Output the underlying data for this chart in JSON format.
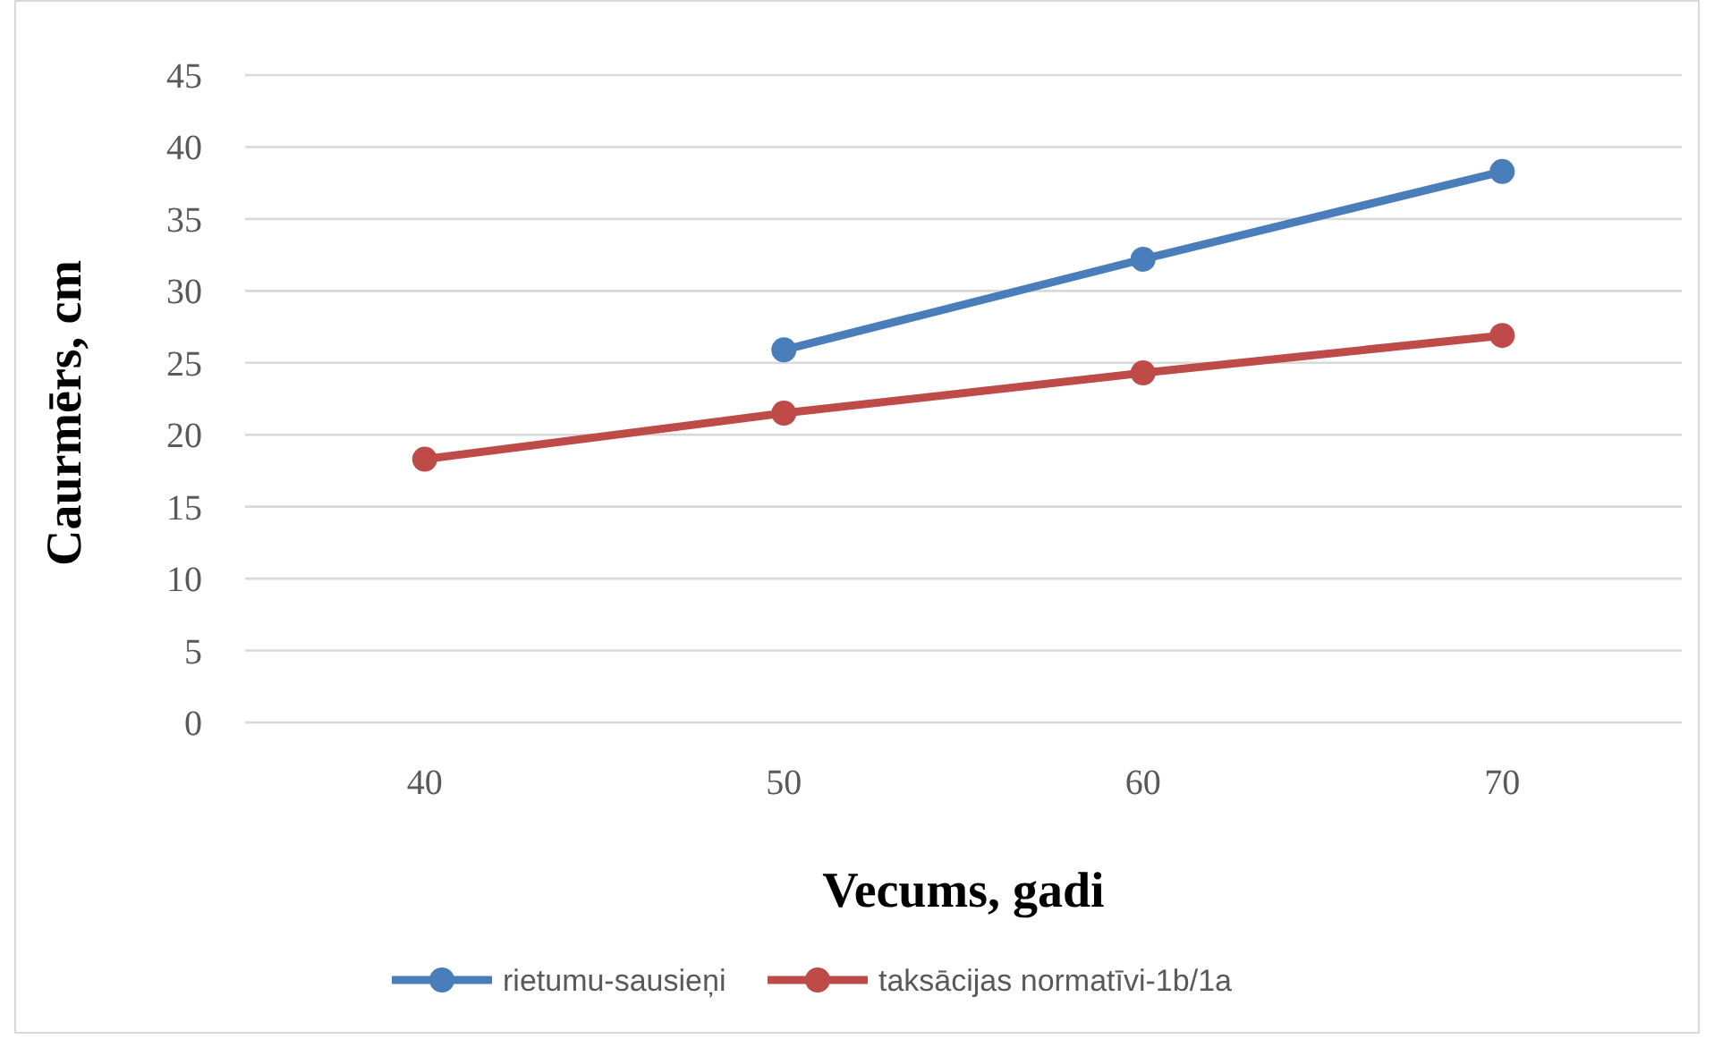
{
  "chart_data": {
    "type": "line",
    "xlabel": "Vecums, gadi",
    "ylabel": "Caurmērs, cm",
    "categories": [
      "40",
      "50",
      "60",
      "70"
    ],
    "ylim": [
      0,
      45
    ],
    "yticks": [
      0,
      5,
      10,
      15,
      20,
      25,
      30,
      35,
      40,
      45
    ],
    "grid": "y",
    "legend": "bottom",
    "marker": "circle",
    "line_style": "solid",
    "series": [
      {
        "name": "rietumu-sausieņi",
        "color": "#4a7ebb",
        "values": [
          null,
          25.9,
          32.2,
          38.3
        ]
      },
      {
        "name": "taksācijas normatīvi-1b/1a",
        "color": "#be4b48",
        "values": [
          18.3,
          21.5,
          24.3,
          26.9
        ]
      }
    ]
  }
}
